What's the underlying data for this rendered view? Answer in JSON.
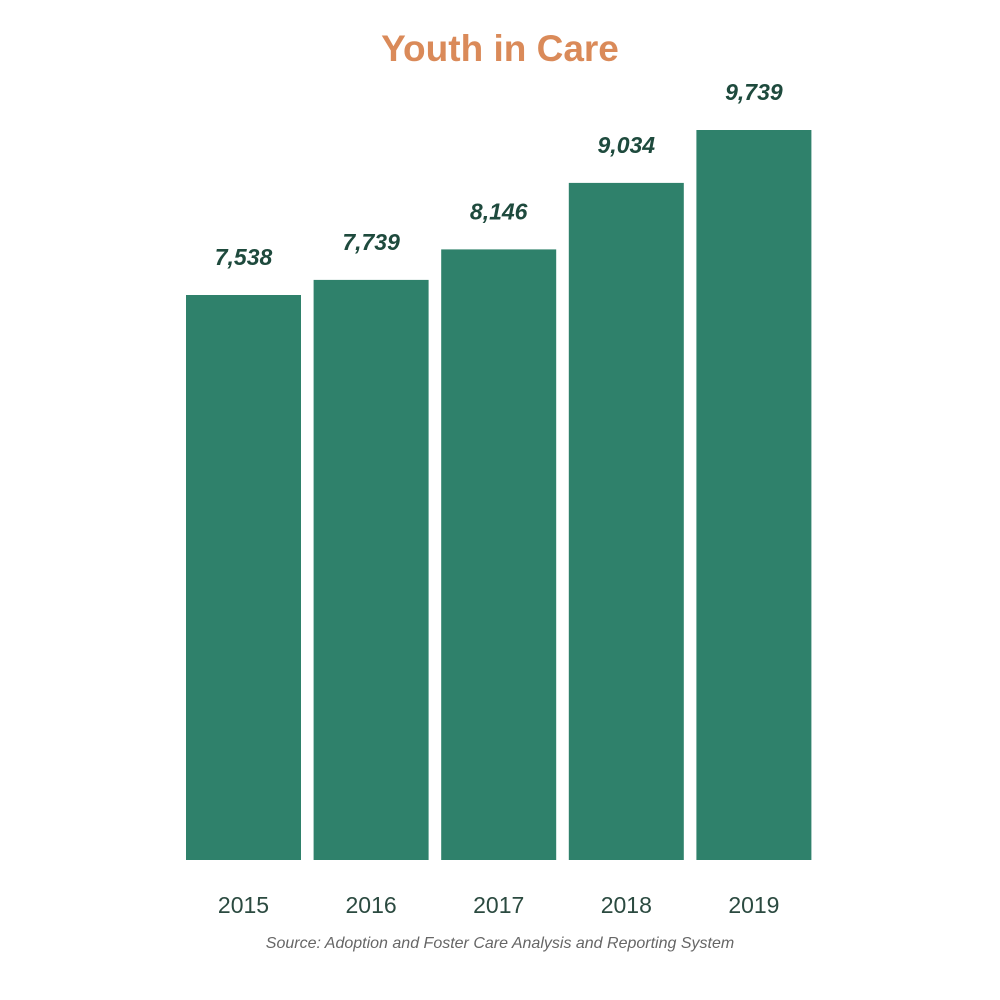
{
  "chart_data": {
    "type": "bar",
    "title": "Youth in Care",
    "categories": [
      "2015",
      "2016",
      "2017",
      "2018",
      "2019"
    ],
    "values": [
      7538,
      7739,
      8146,
      9034,
      9739
    ],
    "value_labels": [
      "7,538",
      "7,739",
      "8,146",
      "9,034",
      "9,739"
    ],
    "xlabel": "",
    "ylabel": "",
    "grid": false,
    "legend": "none",
    "source": "Source: Adoption and Foster Care Analysis and Reporting System"
  },
  "colors": {
    "title": "#DA8A59",
    "bar": "#2F816B",
    "value_label": "#1E4A3D",
    "category_label": "#2B4A40",
    "source": "#666666"
  }
}
